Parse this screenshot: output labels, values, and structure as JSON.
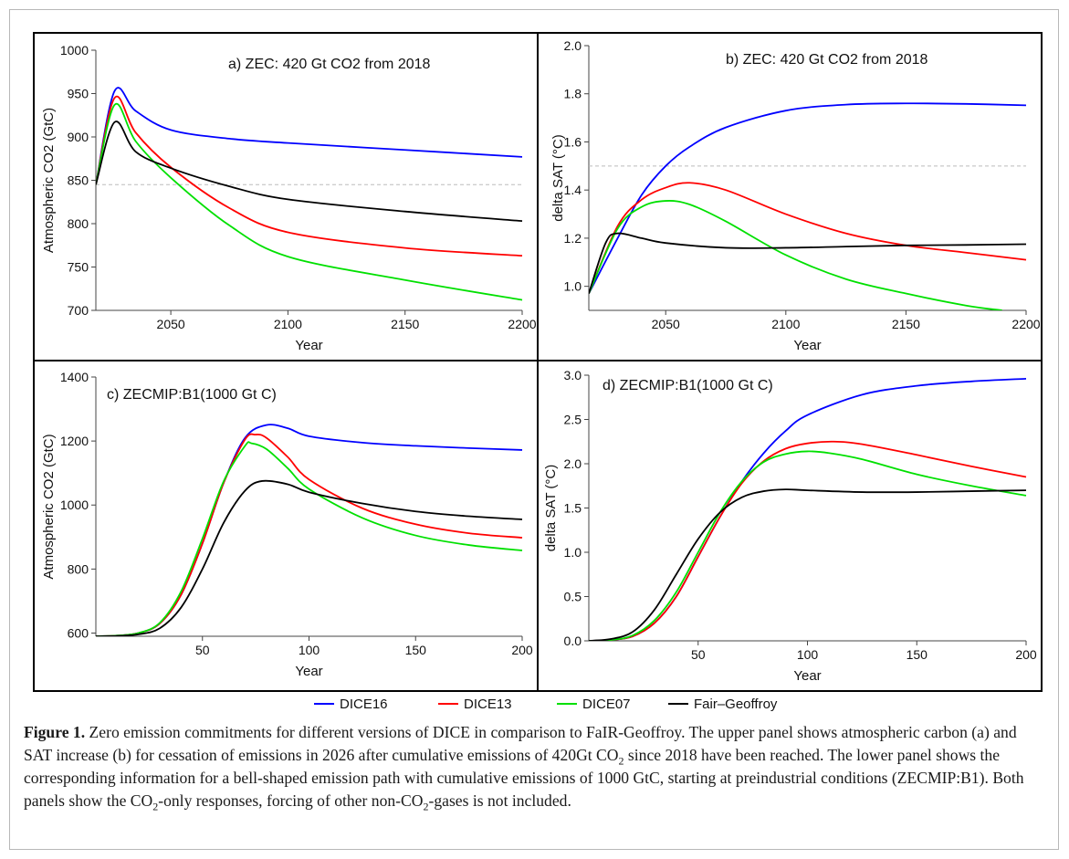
{
  "chart_data": [
    {
      "type": "line",
      "title": "a) ZEC: 420 Gt CO2 from 2018",
      "xlabel": "Year",
      "ylabel": "Atmospheric CO2 (GtC)",
      "xlim": [
        2018,
        2200
      ],
      "ylim": [
        700,
        1000
      ],
      "xticks": [
        2050,
        2100,
        2150,
        2200
      ],
      "yticks": [
        700,
        750,
        800,
        850,
        900,
        950,
        1000
      ],
      "reference_line": 845,
      "grid": false,
      "series": [
        {
          "name": "DICE16",
          "color": "#0000ff",
          "x": [
            2018,
            2026,
            2035,
            2050,
            2075,
            2100,
            2150,
            2200
          ],
          "y": [
            845,
            953,
            930,
            908,
            898,
            893,
            885,
            877
          ]
        },
        {
          "name": "DICE13",
          "color": "#ff0000",
          "x": [
            2018,
            2026,
            2035,
            2050,
            2075,
            2100,
            2150,
            2200
          ],
          "y": [
            845,
            945,
            905,
            865,
            818,
            790,
            772,
            763
          ]
        },
        {
          "name": "DICE07",
          "color": "#00e000",
          "x": [
            2018,
            2026,
            2035,
            2050,
            2075,
            2100,
            2150,
            2200
          ],
          "y": [
            845,
            937,
            895,
            853,
            798,
            762,
            735,
            712
          ]
        },
        {
          "name": "Fair–Geoffroy",
          "color": "#000000",
          "x": [
            2018,
            2026,
            2035,
            2050,
            2075,
            2100,
            2150,
            2200
          ],
          "y": [
            845,
            917,
            883,
            864,
            843,
            828,
            814,
            803
          ]
        }
      ]
    },
    {
      "type": "line",
      "title": "b) ZEC: 420 Gt CO2 from 2018",
      "xlabel": "Year",
      "ylabel": "delta SAT (°C)",
      "xlim": [
        2018,
        2200
      ],
      "ylim": [
        0.9,
        2.0
      ],
      "xticks": [
        2050,
        2100,
        2150,
        2200
      ],
      "yticks": [
        1.0,
        1.2,
        1.4,
        1.6,
        1.8,
        2.0
      ],
      "ytick_labels": [
        "1.0",
        "1.2",
        "1.4",
        "1.6",
        "1.8",
        "2.0"
      ],
      "reference_line": 1.5,
      "grid": false,
      "series": [
        {
          "name": "DICE16",
          "color": "#0000ff",
          "x": [
            2018,
            2030,
            2040,
            2050,
            2060,
            2075,
            2100,
            2125,
            2150,
            2175,
            2200
          ],
          "y": [
            0.97,
            1.2,
            1.38,
            1.5,
            1.58,
            1.66,
            1.73,
            1.755,
            1.76,
            1.758,
            1.752
          ]
        },
        {
          "name": "DICE13",
          "color": "#ff0000",
          "x": [
            2018,
            2030,
            2040,
            2050,
            2060,
            2075,
            2100,
            2125,
            2150,
            2175,
            2200
          ],
          "y": [
            0.97,
            1.25,
            1.36,
            1.41,
            1.43,
            1.4,
            1.3,
            1.22,
            1.17,
            1.14,
            1.11
          ]
        },
        {
          "name": "DICE07",
          "color": "#00e000",
          "x": [
            2018,
            2030,
            2040,
            2050,
            2060,
            2075,
            2100,
            2125,
            2150,
            2175,
            2190
          ],
          "y": [
            0.97,
            1.24,
            1.33,
            1.355,
            1.34,
            1.27,
            1.13,
            1.03,
            0.97,
            0.92,
            0.9
          ]
        },
        {
          "name": "Fair–Geoffroy",
          "color": "#000000",
          "x": [
            2018,
            2025,
            2030,
            2040,
            2050,
            2075,
            2100,
            2125,
            2150,
            2175,
            2200
          ],
          "y": [
            0.97,
            1.18,
            1.22,
            1.2,
            1.18,
            1.16,
            1.16,
            1.165,
            1.17,
            1.172,
            1.175
          ]
        }
      ]
    },
    {
      "type": "line",
      "title": "c) ZECMIP:B1(1000 Gt C)",
      "xlabel": "Year",
      "ylabel": "Atmospheric CO2 (GtC)",
      "xlim": [
        0,
        200
      ],
      "ylim": [
        590,
        1400
      ],
      "xticks": [
        50,
        100,
        150,
        200
      ],
      "yticks": [
        600,
        800,
        1000,
        1200,
        1400
      ],
      "grid": false,
      "series": [
        {
          "name": "DICE16",
          "color": "#0000ff",
          "x": [
            0,
            10,
            20,
            30,
            40,
            50,
            60,
            70,
            80,
            90,
            100,
            125,
            150,
            175,
            200
          ],
          "y": [
            590,
            592,
            600,
            630,
            720,
            880,
            1070,
            1210,
            1250,
            1240,
            1215,
            1195,
            1185,
            1178,
            1172
          ]
        },
        {
          "name": "DICE13",
          "color": "#ff0000",
          "x": [
            0,
            10,
            20,
            30,
            40,
            50,
            60,
            70,
            75,
            80,
            90,
            100,
            125,
            150,
            175,
            200
          ],
          "y": [
            590,
            592,
            600,
            630,
            720,
            880,
            1070,
            1205,
            1220,
            1210,
            1150,
            1080,
            990,
            940,
            912,
            898
          ]
        },
        {
          "name": "DICE07",
          "color": "#00e000",
          "x": [
            0,
            10,
            20,
            30,
            40,
            50,
            60,
            70,
            73,
            80,
            90,
            100,
            125,
            150,
            175,
            200
          ],
          "y": [
            590,
            592,
            600,
            632,
            730,
            895,
            1075,
            1185,
            1193,
            1175,
            1115,
            1050,
            960,
            905,
            875,
            858
          ]
        },
        {
          "name": "Fair–Geoffroy",
          "color": "#000000",
          "x": [
            0,
            10,
            20,
            30,
            40,
            50,
            60,
            70,
            78,
            90,
            100,
            125,
            150,
            175,
            200
          ],
          "y": [
            590,
            591,
            596,
            615,
            680,
            800,
            945,
            1045,
            1075,
            1065,
            1040,
            1005,
            980,
            965,
            955
          ]
        }
      ]
    },
    {
      "type": "line",
      "title": "d) ZECMIP:B1(1000 Gt C)",
      "xlabel": "Year",
      "ylabel": "delta SAT (°C)",
      "xlim": [
        0,
        200
      ],
      "ylim": [
        0,
        3.0
      ],
      "xticks": [
        50,
        100,
        150,
        200
      ],
      "yticks": [
        0.0,
        0.5,
        1.0,
        1.5,
        2.0,
        2.5,
        3.0
      ],
      "ytick_labels": [
        "0.0",
        "0.5",
        "1.0",
        "1.5",
        "2.0",
        "2.5",
        "3.0"
      ],
      "grid": false,
      "series": [
        {
          "name": "DICE16",
          "color": "#0000ff",
          "x": [
            0,
            10,
            20,
            30,
            40,
            50,
            60,
            70,
            80,
            90,
            100,
            125,
            150,
            175,
            200
          ],
          "y": [
            0,
            0.01,
            0.05,
            0.2,
            0.5,
            0.95,
            1.4,
            1.8,
            2.12,
            2.37,
            2.55,
            2.78,
            2.88,
            2.93,
            2.96
          ]
        },
        {
          "name": "DICE13",
          "color": "#ff0000",
          "x": [
            0,
            10,
            20,
            30,
            40,
            50,
            60,
            70,
            80,
            90,
            100,
            112,
            125,
            150,
            175,
            200
          ],
          "y": [
            0,
            0.01,
            0.05,
            0.2,
            0.5,
            0.95,
            1.4,
            1.78,
            2.03,
            2.17,
            2.23,
            2.25,
            2.22,
            2.1,
            1.97,
            1.85
          ]
        },
        {
          "name": "DICE07",
          "color": "#00e000",
          "x": [
            0,
            10,
            20,
            30,
            40,
            50,
            60,
            70,
            80,
            90,
            100,
            110,
            125,
            150,
            175,
            200
          ],
          "y": [
            0,
            0.01,
            0.06,
            0.23,
            0.55,
            1.0,
            1.45,
            1.8,
            2.02,
            2.11,
            2.14,
            2.12,
            2.05,
            1.88,
            1.75,
            1.64
          ]
        },
        {
          "name": "Fair–Geoffroy",
          "color": "#000000",
          "x": [
            0,
            10,
            20,
            30,
            40,
            50,
            60,
            70,
            80,
            90,
            100,
            125,
            150,
            175,
            200
          ],
          "y": [
            0,
            0.02,
            0.1,
            0.35,
            0.75,
            1.15,
            1.45,
            1.62,
            1.69,
            1.71,
            1.7,
            1.68,
            1.68,
            1.69,
            1.7
          ]
        }
      ]
    }
  ],
  "legend": {
    "entries": [
      {
        "label": "DICE16",
        "color": "#0000ff"
      },
      {
        "label": "DICE13",
        "color": "#ff0000"
      },
      {
        "label": "DICE07",
        "color": "#00e000"
      },
      {
        "label": "Fair–Geoffroy",
        "color": "#000000"
      }
    ],
    "placement": "bottom-center"
  },
  "caption": {
    "label": "Figure 1.",
    "p1": " Zero emission commitments for different versions of DICE in comparison to FaIR-Geoffroy. The upper panel shows atmospheric carbon (a) and SAT increase (b) for cessation of emissions in 2026 after cumulative emissions of 420Gt CO",
    "sub1": "2",
    "p2": " since 2018 have been reached. The lower panel shows the corresponding information for a bell-shaped emission path with cumulative emissions of 1000 GtC, starting at preindustrial conditions (ZECMIP:B1). Both panels show the CO",
    "sub2": "2",
    "p3": "-only responses, forcing of other non-CO",
    "sub3": "2",
    "p4": "-gases is not included."
  }
}
